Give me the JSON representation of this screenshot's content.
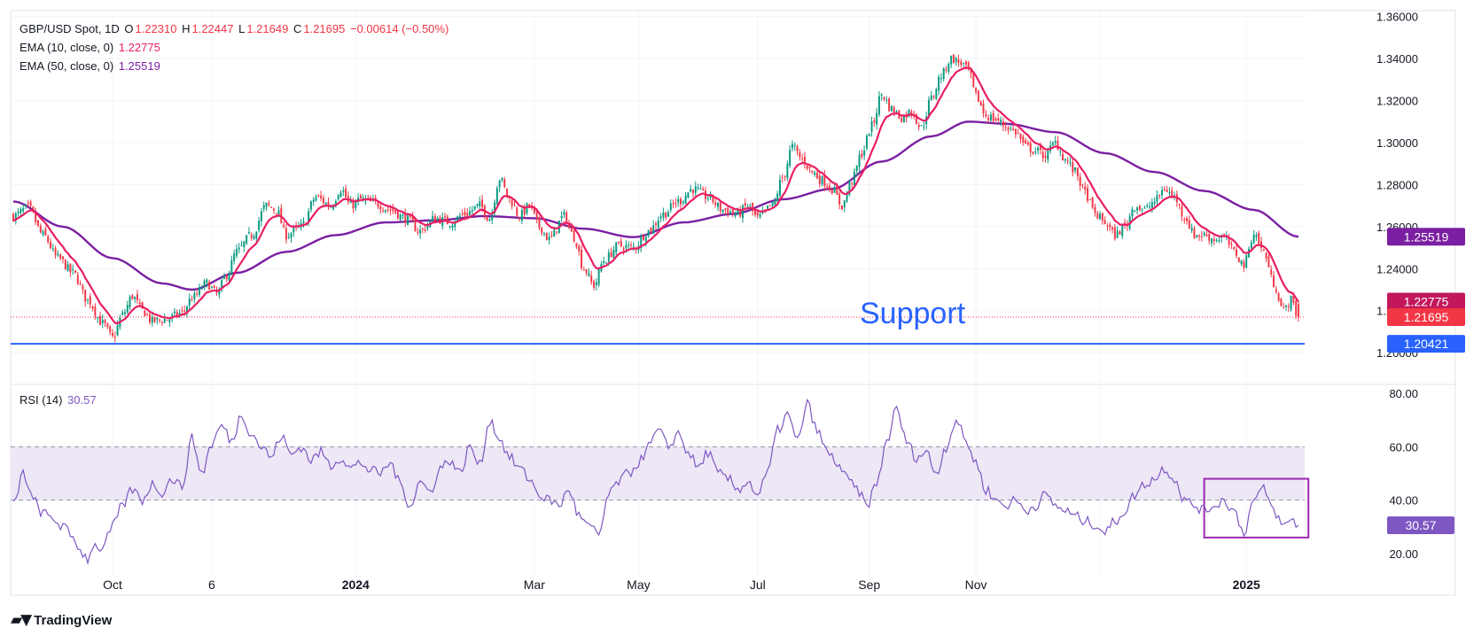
{
  "legend": {
    "symbol": "GBP/USD Spot, 1D",
    "o_label": "O",
    "o": "1.22310",
    "h_label": "H",
    "h": "1.22447",
    "l_label": "L",
    "l": "1.21649",
    "c_label": "C",
    "c": "1.21695",
    "change": "−0.00614 (−0.50%)",
    "ema10_label": "EMA (10, close, 0)",
    "ema10_value": "1.22775",
    "ema50_label": "EMA (50, close, 0)",
    "ema50_value": "1.25519",
    "rsi_label": "RSI (14)",
    "rsi_value": "30.57"
  },
  "annotation": {
    "support_text": "Support",
    "support_level": 1.20421
  },
  "branding": {
    "name": "TradingView"
  },
  "colors": {
    "up": "#089981",
    "down": "#f23645",
    "ema10": "#e91e63",
    "ema50": "#7b1fa2",
    "support": "#2962ff",
    "rsi": "#7e57c2",
    "rsi_band": "#ede7f6",
    "grid": "#f0f3fa"
  },
  "chart_data": [
    {
      "type": "candlestick",
      "title": "GBP/USD Spot, 1D",
      "x_ticks": [
        "Oct",
        "6",
        "2024",
        "Mar",
        "May",
        "Jul",
        "Sep",
        "Nov",
        "2025"
      ],
      "y_ticks": [
        "1.20000",
        "1.22000",
        "1.24000",
        "1.26000",
        "1.28000",
        "1.30000",
        "1.32000",
        "1.34000",
        "1.36000"
      ],
      "ylim": [
        1.195,
        1.362
      ],
      "price_labels": [
        "1.25519",
        "1.22775",
        "1.21695",
        "1.20421"
      ],
      "grid": true,
      "anchors": [
        [
          0,
          1.265
        ],
        [
          6,
          1.269
        ],
        [
          12,
          1.256
        ],
        [
          18,
          1.245
        ],
        [
          24,
          1.238
        ],
        [
          30,
          1.225
        ],
        [
          36,
          1.214
        ],
        [
          40,
          1.207
        ],
        [
          44,
          1.218
        ],
        [
          48,
          1.227
        ],
        [
          52,
          1.22
        ],
        [
          56,
          1.215
        ],
        [
          62,
          1.216
        ],
        [
          68,
          1.219
        ],
        [
          72,
          1.226
        ],
        [
          78,
          1.233
        ],
        [
          82,
          1.228
        ],
        [
          86,
          1.237
        ],
        [
          90,
          1.248
        ],
        [
          96,
          1.256
        ],
        [
          102,
          1.27
        ],
        [
          106,
          1.268
        ],
        [
          110,
          1.256
        ],
        [
          116,
          1.26
        ],
        [
          122,
          1.274
        ],
        [
          128,
          1.27
        ],
        [
          132,
          1.278
        ],
        [
          136,
          1.27
        ],
        [
          140,
          1.273
        ],
        [
          146,
          1.271
        ],
        [
          152,
          1.268
        ],
        [
          158,
          1.264
        ],
        [
          164,
          1.258
        ],
        [
          170,
          1.264
        ],
        [
          176,
          1.262
        ],
        [
          182,
          1.266
        ],
        [
          188,
          1.27
        ],
        [
          192,
          1.264
        ],
        [
          196,
          1.283
        ],
        [
          200,
          1.273
        ],
        [
          204,
          1.265
        ],
        [
          208,
          1.27
        ],
        [
          212,
          1.26
        ],
        [
          216,
          1.254
        ],
        [
          222,
          1.265
        ],
        [
          226,
          1.255
        ],
        [
          230,
          1.24
        ],
        [
          234,
          1.232
        ],
        [
          238,
          1.244
        ],
        [
          244,
          1.251
        ],
        [
          250,
          1.25
        ],
        [
          256,
          1.258
        ],
        [
          262,
          1.266
        ],
        [
          268,
          1.272
        ],
        [
          274,
          1.278
        ],
        [
          280,
          1.274
        ],
        [
          286,
          1.268
        ],
        [
          292,
          1.266
        ],
        [
          296,
          1.27
        ],
        [
          300,
          1.264
        ],
        [
          306,
          1.27
        ],
        [
          310,
          1.283
        ],
        [
          314,
          1.298
        ],
        [
          318,
          1.292
        ],
        [
          322,
          1.286
        ],
        [
          326,
          1.282
        ],
        [
          330,
          1.278
        ],
        [
          334,
          1.27
        ],
        [
          338,
          1.282
        ],
        [
          342,
          1.295
        ],
        [
          346,
          1.308
        ],
        [
          350,
          1.323
        ],
        [
          354,
          1.316
        ],
        [
          358,
          1.312
        ],
        [
          362,
          1.315
        ],
        [
          366,
          1.307
        ],
        [
          370,
          1.321
        ],
        [
          374,
          1.332
        ],
        [
          378,
          1.34
        ],
        [
          382,
          1.338
        ],
        [
          385,
          1.334
        ],
        [
          388,
          1.322
        ],
        [
          392,
          1.313
        ],
        [
          396,
          1.311
        ],
        [
          400,
          1.308
        ],
        [
          404,
          1.305
        ],
        [
          408,
          1.298
        ],
        [
          412,
          1.296
        ],
        [
          416,
          1.294
        ],
        [
          420,
          1.3
        ],
        [
          424,
          1.292
        ],
        [
          428,
          1.286
        ],
        [
          432,
          1.276
        ],
        [
          436,
          1.266
        ],
        [
          440,
          1.262
        ],
        [
          444,
          1.256
        ],
        [
          448,
          1.26
        ],
        [
          452,
          1.27
        ],
        [
          456,
          1.268
        ],
        [
          460,
          1.272
        ],
        [
          464,
          1.278
        ],
        [
          468,
          1.274
        ],
        [
          472,
          1.265
        ],
        [
          476,
          1.256
        ],
        [
          480,
          1.256
        ],
        [
          484,
          1.254
        ],
        [
          488,
          1.255
        ],
        [
          492,
          1.248
        ],
        [
          496,
          1.242
        ],
        [
          500,
          1.257
        ],
        [
          504,
          1.248
        ],
        [
          508,
          1.233
        ],
        [
          512,
          1.22
        ],
        [
          515,
          1.225
        ],
        [
          518,
          1.21695
        ]
      ],
      "ema50": [
        [
          0,
          1.272
        ],
        [
          20,
          1.26
        ],
        [
          40,
          1.245
        ],
        [
          60,
          1.233
        ],
        [
          72,
          1.23
        ],
        [
          90,
          1.238
        ],
        [
          110,
          1.248
        ],
        [
          130,
          1.256
        ],
        [
          150,
          1.262
        ],
        [
          170,
          1.263
        ],
        [
          190,
          1.265
        ],
        [
          210,
          1.264
        ],
        [
          230,
          1.259
        ],
        [
          250,
          1.255
        ],
        [
          270,
          1.262
        ],
        [
          290,
          1.266
        ],
        [
          310,
          1.273
        ],
        [
          330,
          1.278
        ],
        [
          350,
          1.291
        ],
        [
          370,
          1.303
        ],
        [
          385,
          1.31
        ],
        [
          400,
          1.309
        ],
        [
          420,
          1.305
        ],
        [
          440,
          1.295
        ],
        [
          460,
          1.286
        ],
        [
          480,
          1.277
        ],
        [
          500,
          1.268
        ],
        [
          518,
          1.25519
        ]
      ]
    },
    {
      "type": "line",
      "title": "RSI (14)",
      "y_ticks": [
        "20.00",
        "40.00",
        "60.00",
        "80.00"
      ],
      "ylim": [
        15,
        82
      ],
      "band": [
        40,
        60
      ],
      "value_label": "30.57",
      "anchors": [
        [
          0,
          38
        ],
        [
          4,
          50
        ],
        [
          8,
          40
        ],
        [
          12,
          35
        ],
        [
          16,
          33
        ],
        [
          20,
          30
        ],
        [
          24,
          26
        ],
        [
          28,
          20
        ],
        [
          30,
          18
        ],
        [
          32,
          23
        ],
        [
          36,
          22
        ],
        [
          40,
          30
        ],
        [
          44,
          38
        ],
        [
          48,
          44
        ],
        [
          52,
          40
        ],
        [
          56,
          46
        ],
        [
          60,
          43
        ],
        [
          64,
          48
        ],
        [
          68,
          45
        ],
        [
          72,
          63
        ],
        [
          76,
          50
        ],
        [
          80,
          61
        ],
        [
          84,
          68
        ],
        [
          88,
          62
        ],
        [
          92,
          72
        ],
        [
          96,
          65
        ],
        [
          100,
          60
        ],
        [
          104,
          56
        ],
        [
          108,
          64
        ],
        [
          112,
          57
        ],
        [
          116,
          60
        ],
        [
          120,
          55
        ],
        [
          124,
          58
        ],
        [
          128,
          53
        ],
        [
          132,
          56
        ],
        [
          136,
          52
        ],
        [
          140,
          54
        ],
        [
          144,
          51
        ],
        [
          148,
          50
        ],
        [
          152,
          54
        ],
        [
          156,
          46
        ],
        [
          160,
          38
        ],
        [
          164,
          47
        ],
        [
          168,
          43
        ],
        [
          172,
          52
        ],
        [
          176,
          55
        ],
        [
          180,
          50
        ],
        [
          184,
          60
        ],
        [
          188,
          53
        ],
        [
          192,
          70
        ],
        [
          196,
          63
        ],
        [
          200,
          56
        ],
        [
          204,
          52
        ],
        [
          208,
          48
        ],
        [
          212,
          42
        ],
        [
          216,
          40
        ],
        [
          220,
          38
        ],
        [
          224,
          44
        ],
        [
          228,
          34
        ],
        [
          232,
          30
        ],
        [
          236,
          27
        ],
        [
          240,
          42
        ],
        [
          244,
          47
        ],
        [
          248,
          50
        ],
        [
          252,
          54
        ],
        [
          256,
          60
        ],
        [
          260,
          66
        ],
        [
          264,
          60
        ],
        [
          268,
          65
        ],
        [
          272,
          58
        ],
        [
          276,
          52
        ],
        [
          280,
          58
        ],
        [
          284,
          50
        ],
        [
          288,
          48
        ],
        [
          292,
          44
        ],
        [
          296,
          47
        ],
        [
          300,
          42
        ],
        [
          304,
          50
        ],
        [
          308,
          66
        ],
        [
          312,
          72
        ],
        [
          316,
          62
        ],
        [
          320,
          76
        ],
        [
          324,
          66
        ],
        [
          328,
          58
        ],
        [
          332,
          54
        ],
        [
          336,
          48
        ],
        [
          340,
          44
        ],
        [
          344,
          38
        ],
        [
          348,
          46
        ],
        [
          352,
          62
        ],
        [
          356,
          74
        ],
        [
          360,
          62
        ],
        [
          364,
          56
        ],
        [
          368,
          58
        ],
        [
          372,
          50
        ],
        [
          376,
          60
        ],
        [
          380,
          70
        ],
        [
          384,
          62
        ],
        [
          388,
          54
        ],
        [
          392,
          44
        ],
        [
          396,
          40
        ],
        [
          400,
          38
        ],
        [
          404,
          40
        ],
        [
          408,
          36
        ],
        [
          412,
          38
        ],
        [
          416,
          42
        ],
        [
          420,
          38
        ],
        [
          424,
          36
        ],
        [
          428,
          34
        ],
        [
          432,
          32
        ],
        [
          436,
          31
        ],
        [
          440,
          28
        ],
        [
          444,
          32
        ],
        [
          448,
          36
        ],
        [
          452,
          42
        ],
        [
          456,
          46
        ],
        [
          460,
          48
        ],
        [
          464,
          52
        ],
        [
          468,
          48
        ],
        [
          472,
          40
        ],
        [
          476,
          38
        ],
        [
          480,
          36
        ],
        [
          484,
          38
        ],
        [
          488,
          40
        ],
        [
          492,
          36
        ],
        [
          496,
          28
        ],
        [
          500,
          40
        ],
        [
          504,
          44
        ],
        [
          508,
          36
        ],
        [
          512,
          30
        ],
        [
          515,
          33
        ],
        [
          518,
          30.57
        ]
      ]
    }
  ]
}
